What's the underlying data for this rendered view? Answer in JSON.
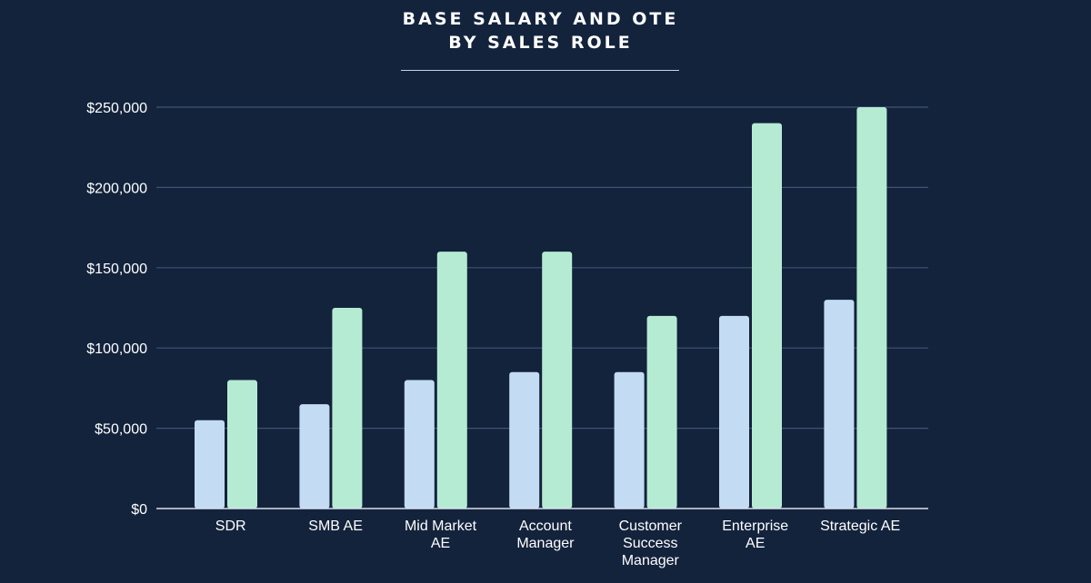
{
  "title_lines": [
    "BASE SALARY AND OTE",
    "BY SALES ROLE"
  ],
  "colors": {
    "background": "#13233c",
    "base": "#c3dcf4",
    "ote": "#b5ebd3",
    "grid": "#3e5372",
    "axis": "#d9e0ea",
    "text": "#ffffff"
  },
  "chart_data": {
    "type": "bar",
    "title": "BASE SALARY AND OTE BY SALES ROLE",
    "xlabel": "",
    "ylabel": "",
    "ylim": [
      0,
      250000
    ],
    "yticks": [
      0,
      50000,
      100000,
      150000,
      200000,
      250000
    ],
    "ytick_labels": [
      "$0",
      "$50,000",
      "$100,000",
      "$150,000",
      "$200,000",
      "$250,000"
    ],
    "grid": true,
    "legend": "none",
    "categories": [
      [
        "SDR"
      ],
      [
        "SMB AE"
      ],
      [
        "Mid Market",
        "AE"
      ],
      [
        "Account",
        "Manager"
      ],
      [
        "Customer",
        "Success",
        "Manager"
      ],
      [
        "Enterprise",
        "AE"
      ],
      [
        "Strategic AE"
      ]
    ],
    "series": [
      {
        "values": [
          55000,
          65000,
          80000,
          85000,
          85000,
          120000,
          130000
        ]
      },
      {
        "values": [
          80000,
          125000,
          160000,
          160000,
          120000,
          240000,
          250000
        ]
      }
    ]
  }
}
